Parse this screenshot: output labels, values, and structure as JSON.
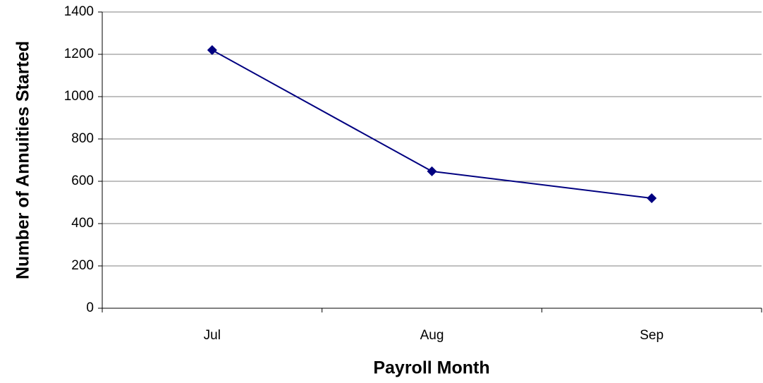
{
  "chart_data": {
    "type": "line",
    "x_label": "Payroll Month",
    "y_label": "Number of Annuities Started",
    "categories": [
      "Jul",
      "Aug",
      "Sep"
    ],
    "series": [
      {
        "name": "Annuities Started",
        "color": "#000080",
        "values": [
          1220,
          647,
          520
        ]
      }
    ],
    "ylim": [
      0,
      1400
    ],
    "yticks": [
      0,
      200,
      400,
      600,
      800,
      1000,
      1200,
      1400
    ],
    "grid": true,
    "legend": false
  }
}
